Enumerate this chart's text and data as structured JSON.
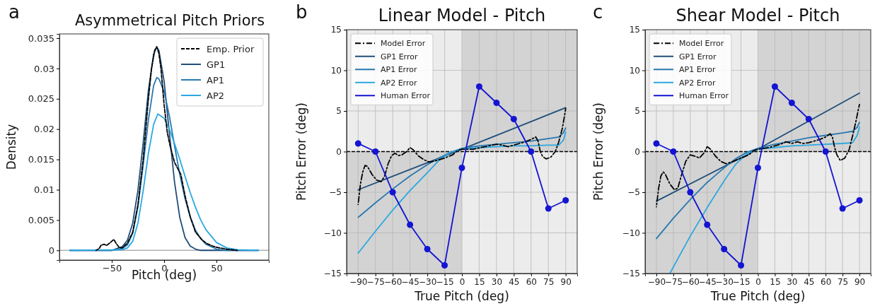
{
  "chart_data": [
    {
      "type": "line",
      "title": "Asymmetrical Pitch Priors",
      "xlabel": "Pitch (deg)",
      "ylabel": "Density",
      "annotations": [
        "a"
      ],
      "xlim": [
        -100,
        100
      ],
      "xticks": [
        -50,
        0,
        50
      ],
      "ylim": [
        -0.0016,
        0.0357
      ],
      "yticks": [
        0,
        0.005,
        0.01,
        0.015,
        0.02,
        0.025,
        0.03,
        0.035
      ],
      "legend": "top right",
      "grid": false,
      "ref_lines": [
        {
          "axis": "y",
          "value": 0,
          "color": "#b0b0b0",
          "line_style": "solid"
        }
      ],
      "series": [
        {
          "name": "Emp. Prior",
          "color": "#000000",
          "line_style": "dashed",
          "x": [
            -65,
            -62,
            -60,
            -57,
            -55,
            -52,
            -48,
            -46,
            -43,
            -40,
            -35,
            -30,
            -25,
            -20,
            -15,
            -12,
            -9,
            -7,
            -5,
            -3,
            0,
            3,
            6,
            10,
            13,
            16,
            20,
            25,
            30,
            33,
            36,
            40,
            45,
            50,
            60,
            70
          ],
          "values": [
            0,
            0.0003,
            0.0009,
            0.001,
            0.0008,
            0.0012,
            0.0018,
            0.0012,
            0.0005,
            0.0004,
            0.0012,
            0.003,
            0.0075,
            0.015,
            0.025,
            0.03,
            0.033,
            0.0336,
            0.0325,
            0.03,
            0.024,
            0.0195,
            0.017,
            0.0145,
            0.0135,
            0.0125,
            0.009,
            0.0055,
            0.003,
            0.0024,
            0.0018,
            0.0012,
            0.0008,
            0.0005,
            0.0002,
            0
          ]
        },
        {
          "name": "GP1",
          "color": "#1f4e79",
          "x": [
            -90,
            -60,
            -50,
            -40,
            -35,
            -30,
            -25,
            -20,
            -15,
            -10,
            -7,
            -5,
            0,
            5,
            10,
            15,
            20,
            25,
            30,
            35,
            50,
            90
          ],
          "values": [
            0,
            0,
            0,
            0.0006,
            0.0017,
            0.0045,
            0.0099,
            0.0177,
            0.0264,
            0.0324,
            0.0335,
            0.033,
            0.0279,
            0.0194,
            0.0112,
            0.0054,
            0.0021,
            0.0007,
            0.0002,
            0,
            0,
            0
          ]
        },
        {
          "name": "AP1",
          "color": "#2878b0",
          "x": [
            -90,
            -50,
            -40,
            -35,
            -30,
            -25,
            -20,
            -15,
            -10,
            -7,
            -5,
            0,
            5,
            10,
            15,
            20,
            25,
            30,
            35,
            40,
            50,
            60,
            90
          ],
          "values": [
            0,
            0,
            0.0003,
            0.0009,
            0.0028,
            0.0072,
            0.014,
            0.0215,
            0.0272,
            0.0285,
            0.0283,
            0.0262,
            0.0222,
            0.0172,
            0.0125,
            0.0085,
            0.0055,
            0.0033,
            0.0019,
            0.001,
            0.0002,
            0,
            0
          ]
        },
        {
          "name": "AP2",
          "color": "#2aa8e0",
          "x": [
            -90,
            -40,
            -35,
            -30,
            -25,
            -20,
            -15,
            -10,
            -6,
            0,
            5,
            10,
            15,
            20,
            25,
            30,
            35,
            40,
            50,
            60,
            70,
            90
          ],
          "values": [
            0,
            0.0001,
            0.0004,
            0.0015,
            0.0045,
            0.0098,
            0.016,
            0.0208,
            0.0225,
            0.0218,
            0.02,
            0.0176,
            0.015,
            0.0122,
            0.0095,
            0.0071,
            0.005,
            0.0034,
            0.0013,
            0.0004,
            0.0001,
            0
          ]
        }
      ]
    },
    {
      "type": "line",
      "title": "Linear Model - Pitch",
      "xlabel": "True Pitch (deg)",
      "ylabel": "Pitch Error (deg)",
      "annotations": [
        "b"
      ],
      "xlim": [
        -100,
        100
      ],
      "xticks": [
        -90,
        -75,
        -60,
        -45,
        -30,
        -15,
        0,
        15,
        30,
        45,
        60,
        75,
        90
      ],
      "ylim": [
        -15,
        15
      ],
      "yticks": [
        -15,
        -10,
        -5,
        0,
        5,
        10,
        15
      ],
      "legend": "top left",
      "grid": true,
      "ref_lines": [
        {
          "axis": "y",
          "value": 0,
          "color": "#000000",
          "line_style": "dashed"
        }
      ],
      "bands": [
        {
          "axis": "y",
          "from": -15,
          "to": 0
        },
        {
          "axis": "x",
          "from": 0,
          "to": 100,
          "color": "#d3d3d3"
        }
      ],
      "series": [
        {
          "name": "Model Error",
          "color": "#000000",
          "line_style": "dashdot",
          "x": [
            -90,
            -88,
            -86,
            -84,
            -82,
            -78,
            -74,
            -70,
            -67,
            -64,
            -61,
            -58,
            -55,
            -52,
            -48,
            -45,
            -42,
            -38,
            -33,
            -28,
            -22,
            -15,
            -8,
            -4,
            0,
            10,
            20,
            30,
            35,
            40,
            45,
            50,
            55,
            60,
            64,
            66,
            68,
            70,
            73,
            77,
            81,
            84,
            87,
            89,
            90
          ],
          "values": [
            -6.5,
            -4,
            -2.5,
            -1.7,
            -1.8,
            -2.8,
            -3.5,
            -3.7,
            -3,
            -1.5,
            -0.5,
            -0.2,
            -0.5,
            -0.4,
            0,
            0.5,
            0.2,
            -0.5,
            -1,
            -1.3,
            -1.1,
            -0.8,
            -0.4,
            0.1,
            0.3,
            0.3,
            0.6,
            0.9,
            0.8,
            0.6,
            0.8,
            1,
            1.2,
            1.5,
            1.8,
            1.3,
            0,
            -0.6,
            -0.9,
            -0.7,
            0,
            1.2,
            2.8,
            4.4,
            5.3
          ]
        },
        {
          "name": "GP1 Error",
          "color": "#1f4e79",
          "x": [
            -90,
            0,
            90
          ],
          "values": [
            -4.7,
            0.3,
            5.4
          ]
        },
        {
          "name": "AP1 Error",
          "color": "#2878b0",
          "x": [
            -90,
            -75,
            -60,
            -45,
            -30,
            -20,
            -10,
            0,
            15,
            30,
            45,
            60,
            75,
            84,
            88,
            90
          ],
          "values": [
            -8.1,
            -6.3,
            -4.6,
            -3,
            -1.6,
            -0.8,
            -0.1,
            0.4,
            0.7,
            0.9,
            1.1,
            1.3,
            1.6,
            1.8,
            2.3,
            2.9
          ]
        },
        {
          "name": "AP2 Error",
          "color": "#2aa8e0",
          "x": [
            -90,
            -75,
            -60,
            -45,
            -30,
            -20,
            -10,
            0,
            15,
            30,
            45,
            60,
            75,
            84,
            88,
            90
          ],
          "values": [
            -12.5,
            -9.8,
            -7.2,
            -4.8,
            -2.6,
            -1.1,
            -0.1,
            0.3,
            0.5,
            0.6,
            0.7,
            0.7,
            0.8,
            0.8,
            1.4,
            2.4
          ]
        },
        {
          "name": "Human Error",
          "color": "#1414d2",
          "marker": "circle",
          "x": [
            -90,
            -75,
            -60,
            -45,
            -30,
            -15,
            0,
            15,
            30,
            45,
            60,
            75,
            90
          ],
          "values": [
            1,
            0,
            -5,
            -9,
            -12,
            -14,
            -2,
            8,
            6,
            4,
            0,
            -7,
            -6
          ]
        }
      ]
    },
    {
      "type": "line",
      "title": "Shear Model - Pitch",
      "xlabel": "True Pitch (deg)",
      "ylabel": "Pitch Error (deg)",
      "annotations": [
        "c"
      ],
      "xlim": [
        -100,
        100
      ],
      "xticks": [
        -90,
        -75,
        -60,
        -45,
        -30,
        -15,
        0,
        15,
        30,
        45,
        60,
        75,
        90
      ],
      "ylim": [
        -15,
        15
      ],
      "yticks": [
        -15,
        -10,
        -5,
        0,
        5,
        10,
        15
      ],
      "legend": "top left",
      "grid": true,
      "ref_lines": [
        {
          "axis": "y",
          "value": 0,
          "color": "#000000",
          "line_style": "dashed"
        }
      ],
      "bands": [
        {
          "axis": "y",
          "from": -15,
          "to": 0
        },
        {
          "axis": "x",
          "from": 0,
          "to": 100,
          "color": "#d3d3d3"
        }
      ],
      "series": [
        {
          "name": "Model Error",
          "color": "#000000",
          "line_style": "dashdot",
          "x": [
            -90,
            -88,
            -86,
            -84,
            -82,
            -78,
            -74,
            -71,
            -68,
            -64,
            -60,
            -55,
            -52,
            -48,
            -45,
            -42,
            -38,
            -33,
            -28,
            -22,
            -15,
            -8,
            -4,
            0,
            10,
            20,
            25,
            30,
            35,
            40,
            45,
            50,
            55,
            60,
            64,
            66,
            68,
            70,
            73,
            77,
            81,
            84,
            87,
            89,
            90
          ],
          "values": [
            -6.8,
            -4.5,
            -3,
            -2.5,
            -2.8,
            -4,
            -4.7,
            -4.5,
            -3,
            -1.2,
            -0.4,
            -0.6,
            -0.8,
            -0.2,
            0.6,
            0.3,
            -0.5,
            -1.2,
            -1.5,
            -1.2,
            -0.8,
            -0.4,
            0.1,
            0.3,
            0.5,
            0.9,
            1.2,
            1,
            1.2,
            1,
            1.1,
            1.3,
            1.5,
            1.8,
            2.2,
            1.8,
            0.5,
            -0.4,
            -1.1,
            -0.8,
            0.3,
            2,
            3.8,
            5.2,
            5.8
          ]
        },
        {
          "name": "GP1 Error",
          "color": "#1f4e79",
          "x": [
            -90,
            0,
            90
          ],
          "values": [
            -6.1,
            0.3,
            7.2
          ]
        },
        {
          "name": "AP1 Error",
          "color": "#2878b0",
          "x": [
            -90,
            -75,
            -60,
            -45,
            -30,
            -20,
            -10,
            0,
            15,
            30,
            45,
            60,
            75,
            84,
            88,
            90
          ],
          "values": [
            -10.7,
            -8.2,
            -5.9,
            -3.8,
            -2,
            -0.9,
            -0.1,
            0.4,
            0.9,
            1.3,
            1.7,
            2,
            2.3,
            2.5,
            3,
            3.6
          ]
        },
        {
          "name": "AP2 Error",
          "color": "#2aa8e0",
          "x": [
            -78,
            -75,
            -60,
            -45,
            -30,
            -20,
            -10,
            0,
            15,
            30,
            45,
            60,
            75,
            84,
            88,
            90
          ],
          "values": [
            -15,
            -14.2,
            -10.4,
            -6.9,
            -3.6,
            -1.6,
            -0.3,
            0.3,
            0.5,
            0.7,
            0.8,
            0.9,
            1,
            1.1,
            2,
            3
          ]
        },
        {
          "name": "Human Error",
          "color": "#1414d2",
          "marker": "circle",
          "x": [
            -90,
            -75,
            -60,
            -45,
            -30,
            -15,
            0,
            15,
            30,
            45,
            60,
            75,
            90
          ],
          "values": [
            1,
            0,
            -5,
            -9,
            -12,
            -14,
            -2,
            8,
            6,
            4,
            0,
            -7,
            -6
          ]
        }
      ]
    }
  ]
}
